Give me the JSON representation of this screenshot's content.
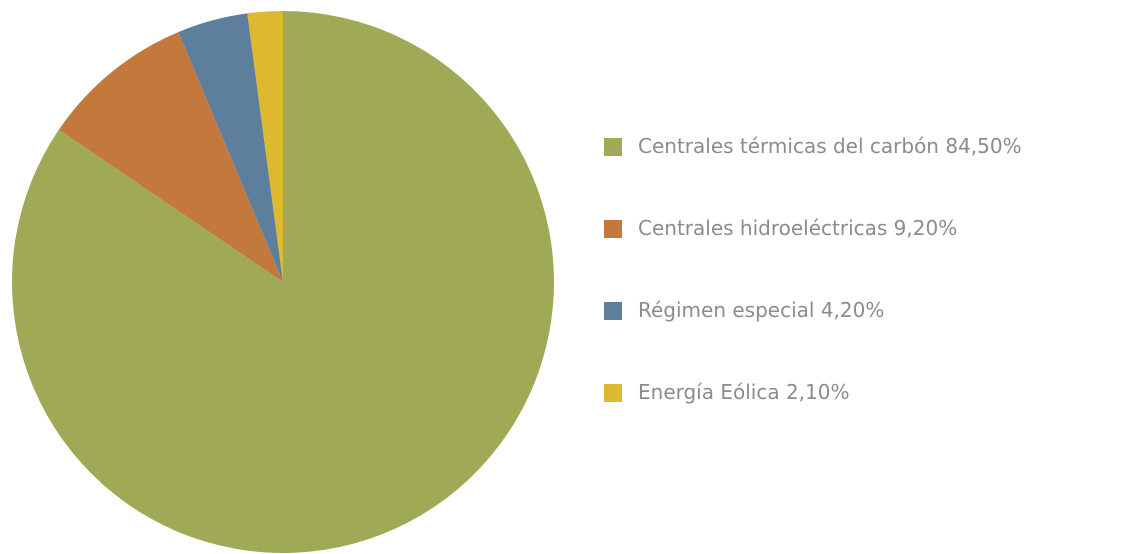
{
  "chart_data": {
    "type": "pie",
    "categories": [
      "Centrales térmicas del carbón",
      "Centrales hidroeléctricas",
      "Régimen especial",
      "Energía Eólica"
    ],
    "values": [
      84.5,
      9.2,
      4.2,
      2.1
    ],
    "value_labels": [
      "84,50%",
      "9,20%",
      "4,20%",
      "2,10%"
    ],
    "colors": [
      "#9fa956",
      "#c3793c",
      "#5d7e9d",
      "#dcb92e"
    ],
    "legend": "right"
  }
}
